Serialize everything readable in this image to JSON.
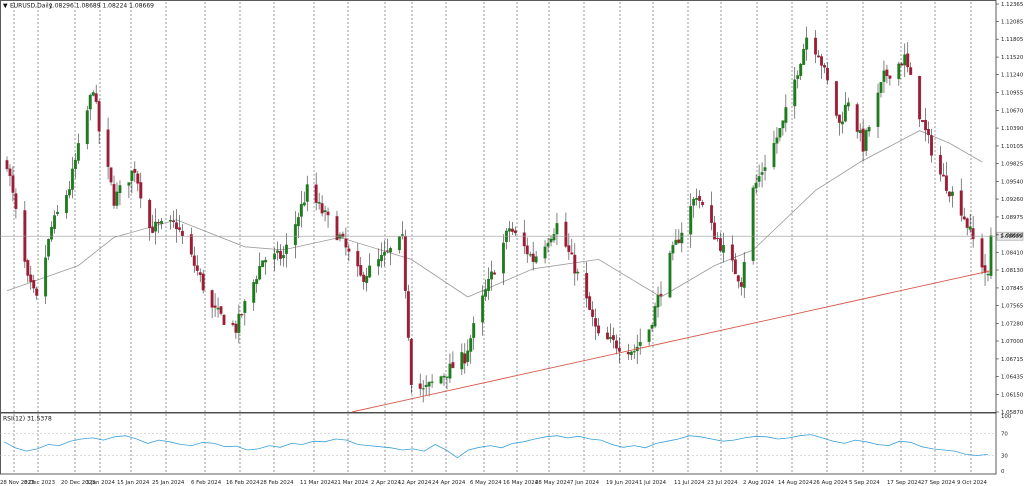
{
  "chart_data": [
    {
      "type": "candlestick",
      "title": "EURUSD,Daily",
      "ohlc_readout": "1.08296 1.08689 1.08224 1.08669",
      "last_price_label": "1.08669",
      "last_price": 1.08669,
      "ylim": [
        1.0587,
        1.12365
      ],
      "y_ticks": [
        "1.12365",
        "1.12085",
        "1.11805",
        "1.11520",
        "1.11240",
        "1.10955",
        "1.10670",
        "1.10390",
        "1.10105",
        "1.09825",
        "1.09540",
        "1.09260",
        "1.08975",
        "1.08690",
        "1.08410",
        "1.08130",
        "1.07845",
        "1.07565",
        "1.07280",
        "1.07000",
        "1.06715",
        "1.06435",
        "1.06150",
        "1.05870"
      ],
      "x_ticks": [
        "28 Nov 2023",
        "8 Dec 2023",
        "20 Dec 2023",
        "3 Jan 2024",
        "15 Jan 2024",
        "25 Jan 2024",
        "6 Feb 2024",
        "16 Feb 2024",
        "28 Feb 2024",
        "11 Mar 2024",
        "21 Mar 2024",
        "2 Apr 2024",
        "12 Apr 2024",
        "24 Apr 2024",
        "6 May 2024",
        "16 May 2024",
        "28 May 2024",
        "7 Jun 2024",
        "19 Jun 2024",
        "1 Jul 2024",
        "11 Jul 2024",
        "23 Jul 2024",
        "2 Aug 2024",
        "14 Aug 2024",
        "26 Aug 2024",
        "5 Sep 2024",
        "17 Sep 2024",
        "27 Sep 2024",
        "9 Oct 2024"
      ],
      "x_start": "2023-11-28",
      "x_end": "2024-10-23",
      "close_path": [
        {
          "date": "2023-11-28",
          "close": 1.0985
        },
        {
          "date": "2023-12-05",
          "close": 1.0795
        },
        {
          "date": "2023-12-08",
          "close": 1.0765
        },
        {
          "date": "2023-12-13",
          "close": 1.088
        },
        {
          "date": "2023-12-19",
          "close": 1.0945
        },
        {
          "date": "2023-12-27",
          "close": 1.1105
        },
        {
          "date": "2023-12-29",
          "close": 1.1035
        },
        {
          "date": "2024-01-03",
          "close": 1.0925
        },
        {
          "date": "2024-01-10",
          "close": 1.0975
        },
        {
          "date": "2024-01-15",
          "close": 1.088
        },
        {
          "date": "2024-01-24",
          "close": 1.0885
        },
        {
          "date": "2024-02-01",
          "close": 1.08
        },
        {
          "date": "2024-02-05",
          "close": 1.075
        },
        {
          "date": "2024-02-13",
          "close": 1.072
        },
        {
          "date": "2024-02-22",
          "close": 1.083
        },
        {
          "date": "2024-02-29",
          "close": 1.0835
        },
        {
          "date": "2024-03-05",
          "close": 1.09
        },
        {
          "date": "2024-03-08",
          "close": 1.094
        },
        {
          "date": "2024-03-19",
          "close": 1.0865
        },
        {
          "date": "2024-03-26",
          "close": 1.08
        },
        {
          "date": "2024-04-02",
          "close": 1.083
        },
        {
          "date": "2024-04-09",
          "close": 1.086
        },
        {
          "date": "2024-04-12",
          "close": 1.064
        },
        {
          "date": "2024-04-16",
          "close": 1.062
        },
        {
          "date": "2024-04-30",
          "close": 1.0675
        },
        {
          "date": "2024-05-06",
          "close": 1.0765
        },
        {
          "date": "2024-05-15",
          "close": 1.088
        },
        {
          "date": "2024-05-23",
          "close": 1.083
        },
        {
          "date": "2024-05-31",
          "close": 1.0885
        },
        {
          "date": "2024-06-07",
          "close": 1.0805
        },
        {
          "date": "2024-06-14",
          "close": 1.0705
        },
        {
          "date": "2024-06-26",
          "close": 1.0685
        },
        {
          "date": "2024-07-01",
          "close": 1.072
        },
        {
          "date": "2024-07-08",
          "close": 1.083
        },
        {
          "date": "2024-07-17",
          "close": 1.0935
        },
        {
          "date": "2024-07-23",
          "close": 1.087
        },
        {
          "date": "2024-08-01",
          "close": 1.0795
        },
        {
          "date": "2024-08-05",
          "close": 1.094
        },
        {
          "date": "2024-08-15",
          "close": 1.1045
        },
        {
          "date": "2024-08-23",
          "close": 1.1185
        },
        {
          "date": "2024-08-27",
          "close": 1.116
        },
        {
          "date": "2024-09-03",
          "close": 1.1045
        },
        {
          "date": "2024-09-06",
          "close": 1.1085
        },
        {
          "date": "2024-09-11",
          "close": 1.101
        },
        {
          "date": "2024-09-18",
          "close": 1.112
        },
        {
          "date": "2024-09-25",
          "close": 1.115
        },
        {
          "date": "2024-10-01",
          "close": 1.1045
        },
        {
          "date": "2024-10-07",
          "close": 1.0965
        },
        {
          "date": "2024-10-14",
          "close": 1.091
        },
        {
          "date": "2024-10-23",
          "close": 1.0798
        },
        {
          "date": "2024-10-24",
          "close": 1.0867
        }
      ],
      "moving_average": [
        {
          "date": "2023-11-28",
          "value": 1.078
        },
        {
          "date": "2023-12-22",
          "value": 1.082
        },
        {
          "date": "2024-01-03",
          "value": 1.0865
        },
        {
          "date": "2024-01-24",
          "value": 1.0893
        },
        {
          "date": "2024-02-16",
          "value": 1.085
        },
        {
          "date": "2024-02-29",
          "value": 1.0845
        },
        {
          "date": "2024-03-19",
          "value": 1.0865
        },
        {
          "date": "2024-04-12",
          "value": 1.083
        },
        {
          "date": "2024-05-01",
          "value": 1.077
        },
        {
          "date": "2024-05-23",
          "value": 1.0815
        },
        {
          "date": "2024-06-14",
          "value": 1.083
        },
        {
          "date": "2024-06-28",
          "value": 1.079
        },
        {
          "date": "2024-07-05",
          "value": 1.077
        },
        {
          "date": "2024-07-23",
          "value": 1.082
        },
        {
          "date": "2024-08-05",
          "value": 1.0845
        },
        {
          "date": "2024-08-26",
          "value": 1.094
        },
        {
          "date": "2024-09-10",
          "value": 1.0985
        },
        {
          "date": "2024-09-30",
          "value": 1.1035
        },
        {
          "date": "2024-10-10",
          "value": 1.1015
        },
        {
          "date": "2024-10-21",
          "value": 1.0985
        }
      ],
      "trendline": {
        "start": {
          "date": "2024-03-23",
          "value": 1.0587
        },
        "end": {
          "date": "2024-10-24",
          "value": 1.0812
        }
      },
      "colors": {
        "up": "#1e7b1e",
        "down": "#9b1e36",
        "moving_average": "#9a9a9a",
        "trendline": "#d6584a",
        "price_line": "#9a9a9a",
        "grid": "#555555"
      }
    },
    {
      "type": "line",
      "title": "RSI(12) 31.5378",
      "ylim": [
        0,
        100
      ],
      "levels": [
        70,
        30
      ],
      "y_ticks": [
        "100",
        "70",
        "30",
        "0"
      ],
      "series": [
        {
          "values": [
            55,
            44,
            38,
            42,
            50,
            48,
            56,
            60,
            62,
            58,
            64,
            66,
            60,
            52,
            58,
            55,
            50,
            48,
            54,
            52,
            46,
            47,
            40,
            42,
            48,
            45,
            52,
            50,
            56,
            55,
            60,
            58,
            50,
            48,
            46,
            44,
            40,
            42,
            38,
            50,
            40,
            26,
            40,
            45,
            48,
            44,
            52,
            55,
            60,
            64,
            66,
            62,
            65,
            60,
            58,
            50,
            45,
            48,
            44,
            52,
            56,
            60,
            66,
            64,
            60,
            56,
            58,
            62,
            65,
            64,
            60,
            62,
            66,
            68,
            62,
            56,
            52,
            58,
            55,
            50,
            48,
            56,
            54,
            46,
            42,
            40,
            38,
            32,
            30,
            32
          ]
        }
      ],
      "colors": {
        "line": "#3aa0d8",
        "levels": "#b8b8b8"
      }
    }
  ]
}
